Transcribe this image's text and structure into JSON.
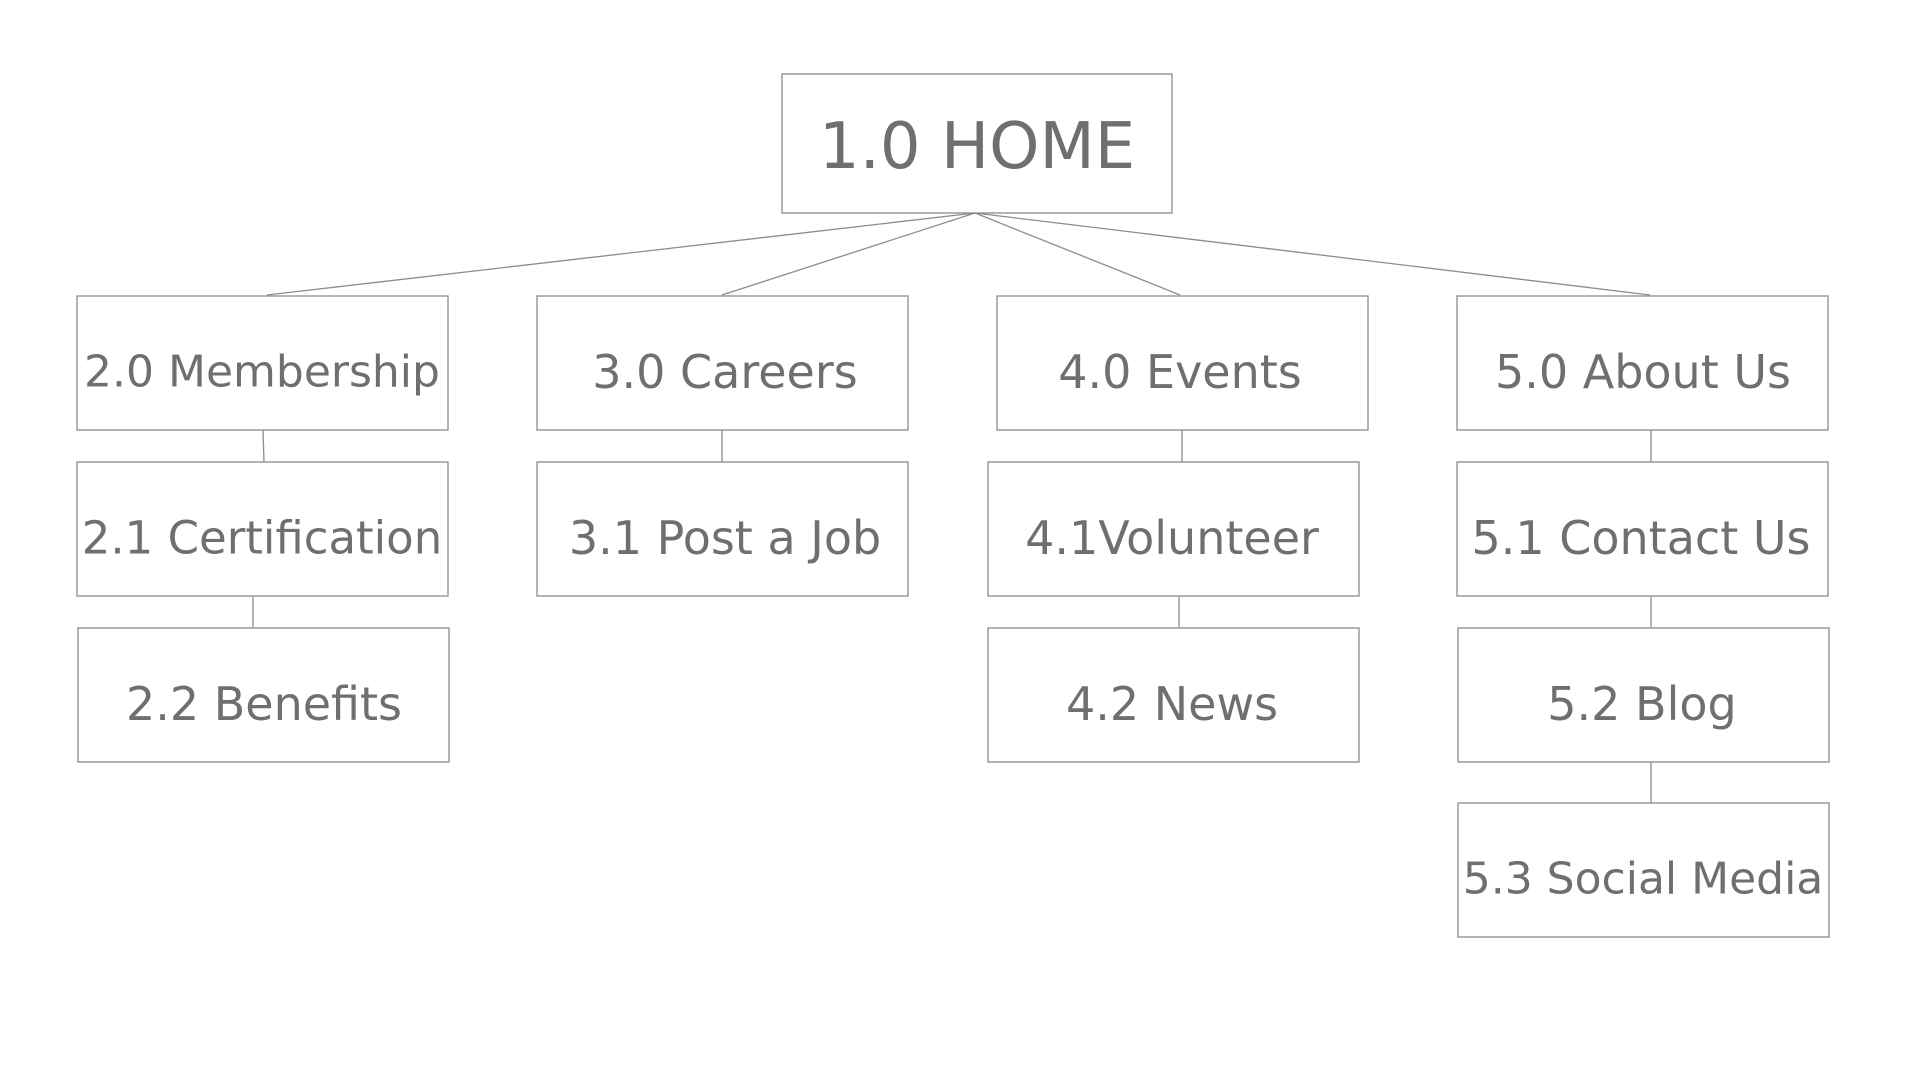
{
  "sitemap": {
    "home": "1.0 HOME",
    "membership": "2.0 Membership",
    "certification": "2.1 Certification",
    "benefits": "2.2 Benefits",
    "careers": "3.0 Careers",
    "post_a_job": "3.1 Post a Job",
    "events": "4.0 Events",
    "volunteer": "4.1Volunteer",
    "news": "4.2 News",
    "about_us": "5.0 About Us",
    "contact_us": "5.1 Contact Us",
    "blog": "5.2 Blog",
    "social_media": "5.3 Social Media"
  }
}
